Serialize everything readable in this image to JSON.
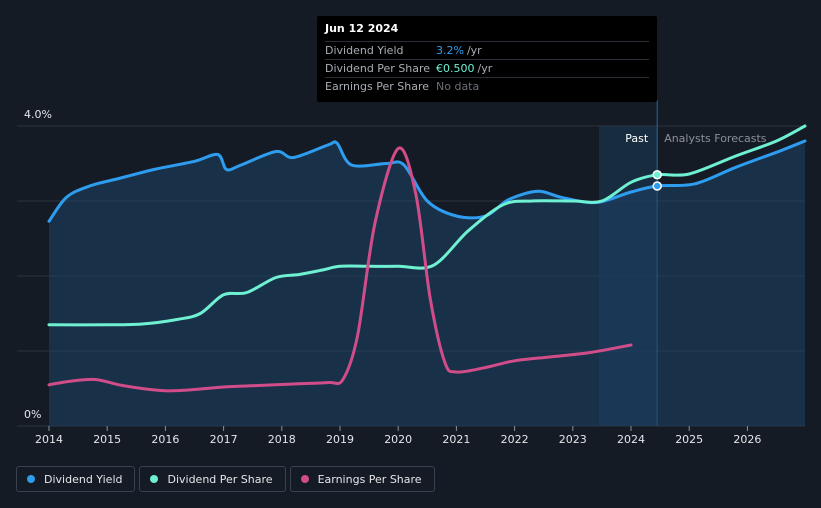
{
  "tooltip": {
    "date": "Jun 12 2024",
    "rows": [
      {
        "name": "Dividend Yield",
        "value": "3.2%",
        "unit": "/yr",
        "color": "#2e9df0"
      },
      {
        "name": "Dividend Per Share",
        "value": "€0.500",
        "unit": "/yr",
        "color": "#6ff0d2"
      },
      {
        "name": "Earnings Per Share",
        "value": "No data",
        "unit": "",
        "color": "#6b7078"
      }
    ]
  },
  "region_labels": {
    "past": "Past",
    "forecast": "Analysts Forecasts"
  },
  "legend": [
    {
      "label": "Dividend Yield",
      "color": "#2e9df0"
    },
    {
      "label": "Dividend Per Share",
      "color": "#6ff0d2"
    },
    {
      "label": "Earnings Per Share",
      "color": "#d14d8a"
    }
  ],
  "chart_data": {
    "type": "line",
    "x_range": [
      2013.85,
      2027.0
    ],
    "y_label_top": "4.0%",
    "y_label_bottom": "0%",
    "y_range": [
      0,
      4.0
    ],
    "x_ticks": [
      "2014",
      "2015",
      "2016",
      "2017",
      "2018",
      "2019",
      "2020",
      "2021",
      "2022",
      "2023",
      "2024",
      "2025",
      "2026"
    ],
    "past_start": 2023.45,
    "past_end": 2024.45,
    "series": [
      {
        "name": "Dividend Yield",
        "color": "#2e9df0",
        "unit": "%",
        "x": [
          2014.0,
          2014.3,
          2014.7,
          2015.2,
          2015.8,
          2016.5,
          2016.9,
          2017.05,
          2017.3,
          2017.9,
          2018.2,
          2018.8,
          2018.95,
          2019.2,
          2019.8,
          2020.1,
          2020.5,
          2021.0,
          2021.5,
          2021.9,
          2022.4,
          2022.8,
          2023.4,
          2024.0,
          2024.45,
          2025.1,
          2025.8,
          2026.5,
          2027.0
        ],
        "values": [
          2.73,
          3.05,
          3.2,
          3.3,
          3.42,
          3.53,
          3.62,
          3.42,
          3.48,
          3.66,
          3.58,
          3.75,
          3.77,
          3.48,
          3.5,
          3.48,
          3.0,
          2.8,
          2.8,
          3.02,
          3.13,
          3.05,
          2.98,
          3.12,
          3.2,
          3.23,
          3.45,
          3.65,
          3.8
        ]
      },
      {
        "name": "Dividend Per Share",
        "color": "#6ff0d2",
        "unit": "€",
        "x": [
          2014.0,
          2015.0,
          2015.6,
          2016.2,
          2016.6,
          2017.0,
          2017.4,
          2017.9,
          2018.3,
          2018.7,
          2019.0,
          2019.5,
          2020.0,
          2020.6,
          2021.2,
          2021.8,
          2022.3,
          2023.0,
          2023.5,
          2024.0,
          2024.45,
          2025.0,
          2025.8,
          2026.5,
          2027.0
        ],
        "values": [
          1.35,
          1.35,
          1.36,
          1.42,
          1.5,
          1.75,
          1.78,
          1.98,
          2.02,
          2.08,
          2.13,
          2.13,
          2.13,
          2.14,
          2.6,
          2.95,
          3.0,
          3.0,
          3.0,
          3.25,
          3.35,
          3.36,
          3.6,
          3.8,
          4.0
        ]
      },
      {
        "name": "Earnings Per Share",
        "color": "#d14d8a",
        "unit": "€",
        "x": [
          2014.0,
          2014.4,
          2014.8,
          2015.2,
          2015.6,
          2016.0,
          2016.4,
          2017.0,
          2017.6,
          2018.2,
          2018.8,
          2019.05,
          2019.3,
          2019.6,
          2020.0,
          2020.3,
          2020.55,
          2020.8,
          2021.0,
          2021.5,
          2022.0,
          2022.6,
          2023.3,
          2024.0
        ],
        "values": [
          0.55,
          0.6,
          0.62,
          0.55,
          0.5,
          0.47,
          0.48,
          0.52,
          0.54,
          0.56,
          0.58,
          0.62,
          1.2,
          2.7,
          3.7,
          3.1,
          1.7,
          0.85,
          0.72,
          0.78,
          0.87,
          0.92,
          0.98,
          1.08
        ]
      }
    ],
    "markers": [
      {
        "series": "Dividend Per Share",
        "x": 2024.45,
        "value": 3.35
      },
      {
        "series": "Dividend Yield",
        "x": 2024.45,
        "value": 3.2
      }
    ]
  }
}
